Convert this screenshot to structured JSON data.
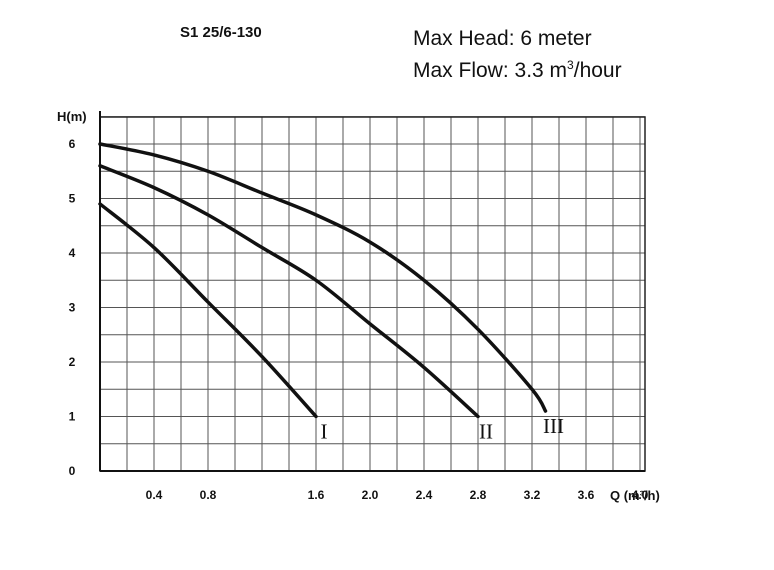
{
  "header": {
    "model": "S1 25/6-130",
    "max_head": "Max Head:  6 meter",
    "max_flow_prefix": "Max Flow: 3.3 m",
    "max_flow_sup": "3",
    "max_flow_suffix": "/hour"
  },
  "chart_data": {
    "type": "line",
    "title": "S1 25/6-130",
    "xlabel": "Q (m³/h)",
    "ylabel": "H(m)",
    "xlim": [
      0,
      4.0
    ],
    "ylim": [
      0,
      6.5
    ],
    "x_ticks": [
      "0.4",
      "0.8",
      "1.6",
      "2.0",
      "2.4",
      "2.8",
      "3.2",
      "3.6",
      "4.0"
    ],
    "x_tick_values": [
      0.4,
      0.8,
      1.6,
      2.0,
      2.4,
      2.8,
      3.2,
      3.6,
      4.0
    ],
    "y_ticks": [
      "0",
      "1",
      "2",
      "3",
      "4",
      "5",
      "6"
    ],
    "y_tick_values": [
      0,
      1,
      2,
      3,
      4,
      5,
      6
    ],
    "grid": true,
    "series": [
      {
        "name": "I",
        "x": [
          0,
          0.4,
          0.8,
          1.2,
          1.6
        ],
        "y": [
          4.9,
          4.1,
          3.1,
          2.1,
          1.0
        ]
      },
      {
        "name": "II",
        "x": [
          0,
          0.4,
          0.8,
          1.2,
          1.6,
          2.0,
          2.4,
          2.8
        ],
        "y": [
          5.6,
          5.2,
          4.7,
          4.1,
          3.5,
          2.7,
          1.9,
          1.0
        ]
      },
      {
        "name": "III",
        "x": [
          0,
          0.4,
          0.8,
          1.2,
          1.6,
          2.0,
          2.4,
          2.8,
          3.2,
          3.3
        ],
        "y": [
          6.0,
          5.8,
          5.5,
          5.1,
          4.7,
          4.2,
          3.5,
          2.6,
          1.5,
          1.1
        ]
      }
    ],
    "colors": {
      "line": "#111111",
      "grid": "#555555"
    }
  }
}
